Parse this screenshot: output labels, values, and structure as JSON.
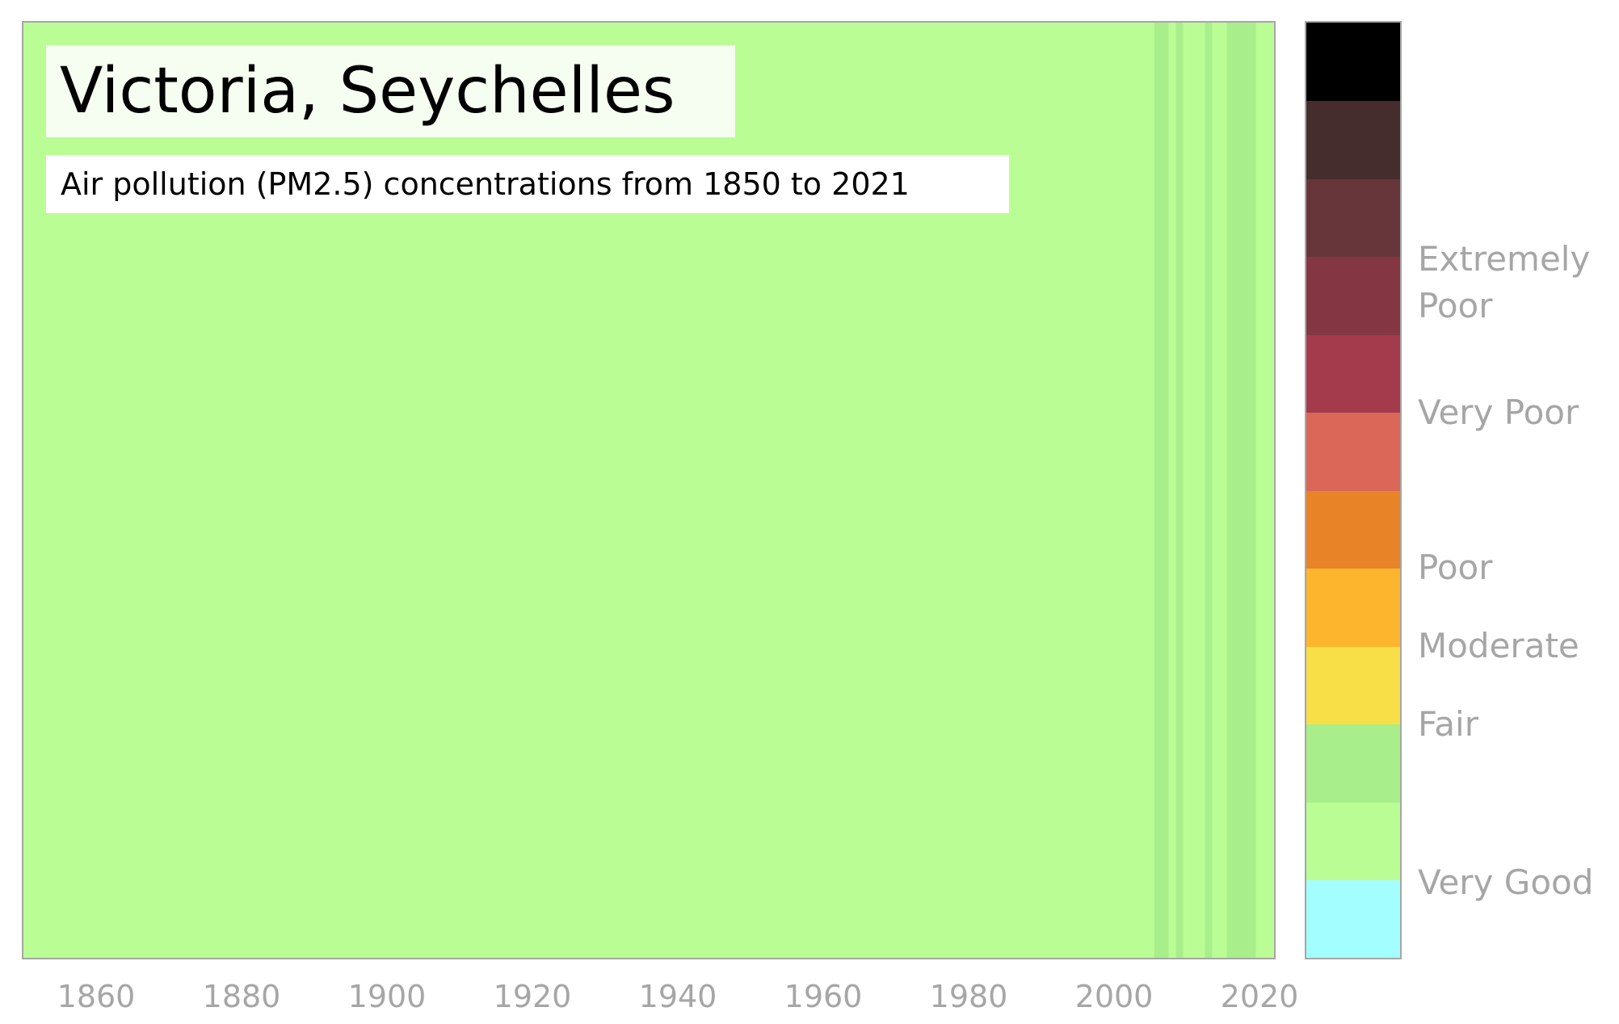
{
  "chart_data": {
    "type": "heatmap",
    "title": "Victoria, Seychelles",
    "subtitle": "Air pollution (PM2.5) concentrations from 1850 to 2021",
    "x_range": [
      1850,
      2022
    ],
    "x_ticks": [
      "1860",
      "1880",
      "1900",
      "1920",
      "1940",
      "1960",
      "1980",
      "2000",
      "2020"
    ],
    "base_color": "#bbfd95",
    "stripes": [
      {
        "start": 2005.5,
        "end": 2007.5,
        "color": "#a8ee8a"
      },
      {
        "start": 2008.5,
        "end": 2009.5,
        "color": "#a8ee8a"
      },
      {
        "start": 2012.5,
        "end": 2013.5,
        "color": "#a8ee8a"
      },
      {
        "start": 2015.5,
        "end": 2019.5,
        "color": "#a8ee8a"
      }
    ],
    "colorbar": {
      "colors": [
        "#a3ffff",
        "#bbfd95",
        "#a8ee8a",
        "#f8df48",
        "#fdb52d",
        "#e88427",
        "#db6758",
        "#a33b4d",
        "#853643",
        "#67363a",
        "#452d2e",
        "#000000"
      ],
      "labels": [
        {
          "text": "Very Good",
          "level": 0.08
        },
        {
          "text": "Fair",
          "level": 0.25
        },
        {
          "text": "Moderate",
          "level": 0.333
        },
        {
          "text": "Poor",
          "level": 0.417
        },
        {
          "text": "Very Poor",
          "level": 0.583
        },
        {
          "text": "Extremely\nPoor",
          "level": 0.722
        }
      ]
    }
  }
}
